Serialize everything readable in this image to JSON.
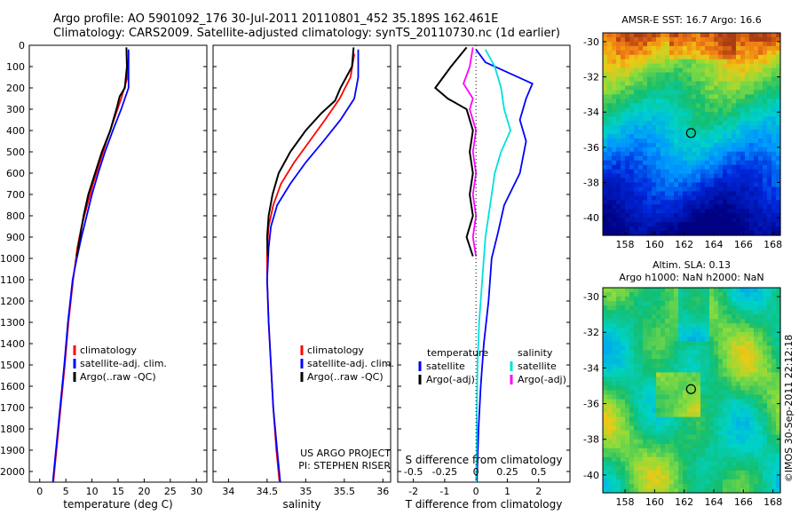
{
  "header": {
    "line1": "Argo profile: AO 5901092_176 30-Jul-2011 20110801_452 35.189S 162.461E",
    "line2": "Climatology: CARS2009. Satellite-adjusted climatology: synTS_20110730.nc (1d earlier)"
  },
  "depth_ticks": [
    "0",
    "100",
    "200",
    "300",
    "400",
    "500",
    "600",
    "700",
    "800",
    "900",
    "1000",
    "1100",
    "1200",
    "1300",
    "1400",
    "1500",
    "1600",
    "1700",
    "1800",
    "1900",
    "2000"
  ],
  "chart_data": [
    {
      "type": "line",
      "xlabel": "temperature (deg C)",
      "ylabel": "",
      "xlim": [
        -2,
        32
      ],
      "ylim": [
        2050,
        0
      ],
      "x_ticks": [
        "0",
        "5",
        "10",
        "15",
        "20",
        "25",
        "30"
      ],
      "legend": [
        "climatology",
        "satellite-adj. clim.",
        "Argo(..raw -QC)"
      ],
      "series": [
        {
          "name": "climatology",
          "color": "#ff0000",
          "points": [
            [
              17,
              60
            ],
            [
              16.8,
              150
            ],
            [
              15.6,
              250
            ],
            [
              14.2,
              350
            ],
            [
              12.8,
              450
            ],
            [
              11.5,
              550
            ],
            [
              10.2,
              650
            ],
            [
              9.1,
              750
            ],
            [
              8,
              850
            ],
            [
              7.2,
              950
            ],
            [
              6.4,
              1100
            ],
            [
              5.5,
              1300
            ],
            [
              4.8,
              1500
            ],
            [
              4,
              1700
            ],
            [
              3.2,
              1900
            ],
            [
              2.6,
              2050
            ]
          ]
        },
        {
          "name": "satellite-adj. clim.",
          "color": "#0000ff",
          "points": [
            [
              17,
              20
            ],
            [
              17,
              200
            ],
            [
              15.6,
              300
            ],
            [
              14,
              400
            ],
            [
              12.5,
              500
            ],
            [
              11.2,
              600
            ],
            [
              10,
              700
            ],
            [
              9,
              800
            ],
            [
              8,
              900
            ],
            [
              7.1,
              1000
            ],
            [
              6.3,
              1100
            ],
            [
              5.4,
              1300
            ],
            [
              4.7,
              1500
            ],
            [
              3.9,
              1700
            ],
            [
              3.1,
              1900
            ],
            [
              2.5,
              2050
            ]
          ]
        },
        {
          "name": "Argo(..raw -QC)",
          "color": "#000000",
          "points": [
            [
              16.6,
              10
            ],
            [
              16.7,
              100
            ],
            [
              16.3,
              200
            ],
            [
              15.3,
              240
            ],
            [
              14.8,
              290
            ],
            [
              13.5,
              400
            ],
            [
              11.9,
              500
            ],
            [
              10.6,
              600
            ],
            [
              9.3,
              700
            ],
            [
              8.4,
              800
            ],
            [
              7.7,
              900
            ],
            [
              7.1,
              990
            ]
          ]
        }
      ],
      "annotations": []
    },
    {
      "type": "line",
      "xlabel": "salinity",
      "ylabel": "",
      "xlim": [
        33.8,
        36.1
      ],
      "ylim": [
        2050,
        0
      ],
      "x_ticks": [
        "34",
        "34.5",
        "35",
        "35.5",
        "36"
      ],
      "legend": [
        "climatology",
        "satellite-adj. clim.",
        "Argo(..raw -QC)"
      ],
      "series": [
        {
          "name": "climatology",
          "color": "#ff0000",
          "points": [
            [
              35.63,
              40
            ],
            [
              35.58,
              150
            ],
            [
              35.44,
              250
            ],
            [
              35.25,
              350
            ],
            [
              35.05,
              450
            ],
            [
              34.85,
              550
            ],
            [
              34.68,
              650
            ],
            [
              34.58,
              750
            ],
            [
              34.52,
              850
            ],
            [
              34.5,
              950
            ],
            [
              34.5,
              1100
            ],
            [
              34.52,
              1300
            ],
            [
              34.55,
              1500
            ],
            [
              34.58,
              1700
            ],
            [
              34.62,
              1900
            ],
            [
              34.66,
              2050
            ]
          ]
        },
        {
          "name": "satellite-adj. clim.",
          "color": "#0000ff",
          "points": [
            [
              35.68,
              20
            ],
            [
              35.68,
              150
            ],
            [
              35.63,
              250
            ],
            [
              35.45,
              350
            ],
            [
              35.23,
              450
            ],
            [
              35.0,
              550
            ],
            [
              34.8,
              650
            ],
            [
              34.63,
              750
            ],
            [
              34.55,
              850
            ],
            [
              34.52,
              950
            ],
            [
              34.5,
              1100
            ],
            [
              34.52,
              1300
            ],
            [
              34.55,
              1500
            ],
            [
              34.58,
              1700
            ],
            [
              34.63,
              1900
            ],
            [
              34.67,
              2050
            ]
          ]
        },
        {
          "name": "Argo(..raw -QC)",
          "color": "#000000",
          "points": [
            [
              35.62,
              10
            ],
            [
              35.6,
              100
            ],
            [
              35.45,
              200
            ],
            [
              35.38,
              260
            ],
            [
              35.2,
              320
            ],
            [
              35.0,
              400
            ],
            [
              34.8,
              500
            ],
            [
              34.65,
              600
            ],
            [
              34.57,
              700
            ],
            [
              34.52,
              800
            ],
            [
              34.5,
              900
            ],
            [
              34.51,
              990
            ]
          ]
        }
      ],
      "annotations": [
        "US ARGO PROJECT",
        "PI: STEPHEN RISER"
      ]
    },
    {
      "type": "line",
      "xlabel": "T difference from climatology",
      "xlabel_top": "S difference from climatology",
      "ylabel": "",
      "xlim": [
        -2.5,
        3
      ],
      "ylim": [
        2050,
        0
      ],
      "x_ticks": [
        "-2",
        "-1",
        "0",
        "1",
        "2"
      ],
      "x_ticks_top": [
        "-0.5",
        "-0.25",
        "0",
        "0.25",
        "0.5"
      ],
      "legend_temperature": {
        "heading": "temperature",
        "items": [
          "satellite",
          "Argo(-adj)"
        ]
      },
      "legend_salinity": {
        "heading": "salinity",
        "items": [
          "satellite",
          "Argo(-adj)"
        ]
      },
      "series": [
        {
          "name": "satellite",
          "color": "#0000ff",
          "points": [
            [
              0,
              20
            ],
            [
              0.3,
              80
            ],
            [
              1.8,
              180
            ],
            [
              1.6,
              250
            ],
            [
              1.4,
              350
            ],
            [
              1.6,
              450
            ],
            [
              1.4,
              600
            ],
            [
              0.9,
              750
            ],
            [
              0.7,
              880
            ],
            [
              0.5,
              1000
            ],
            [
              0.4,
              1200
            ],
            [
              0.25,
              1400
            ],
            [
              0.15,
              1600
            ],
            [
              0.08,
              1800
            ],
            [
              0.03,
              2050
            ]
          ]
        },
        {
          "name": "Argo(-adj)",
          "color": "#000000",
          "points": [
            [
              -0.3,
              10
            ],
            [
              -0.8,
              100
            ],
            [
              -1.3,
              200
            ],
            [
              -0.9,
              250
            ],
            [
              -0.3,
              300
            ],
            [
              -0.1,
              400
            ],
            [
              -0.2,
              500
            ],
            [
              -0.1,
              600
            ],
            [
              -0.2,
              700
            ],
            [
              -0.1,
              800
            ],
            [
              -0.3,
              900
            ],
            [
              -0.1,
              990
            ]
          ]
        },
        {
          "name": "satellite",
          "color": "#00e0e0",
          "points": [
            [
              0.3,
              20
            ],
            [
              0.6,
              100
            ],
            [
              0.8,
              200
            ],
            [
              0.9,
              300
            ],
            [
              1.1,
              400
            ],
            [
              0.8,
              500
            ],
            [
              0.6,
              600
            ],
            [
              0.45,
              750
            ],
            [
              0.3,
              900
            ],
            [
              0.2,
              1100
            ],
            [
              0.1,
              1300
            ],
            [
              0.05,
              1500
            ],
            [
              0.03,
              1700
            ],
            [
              0.02,
              1900
            ],
            [
              0,
              2050
            ]
          ]
        },
        {
          "name": "Argo(-adj)",
          "color": "#ff00ff",
          "points": [
            [
              -0.1,
              10
            ],
            [
              -0.2,
              100
            ],
            [
              -0.4,
              180
            ],
            [
              -0.1,
              250
            ],
            [
              -0.2,
              300
            ],
            [
              0,
              400
            ],
            [
              -0.1,
              500
            ],
            [
              0,
              600
            ],
            [
              -0.1,
              700
            ],
            [
              0,
              800
            ],
            [
              -0.1,
              900
            ],
            [
              0,
              990
            ]
          ]
        }
      ],
      "annotations": []
    },
    {
      "type": "heatmap",
      "title": "AMSR-E SST: 16.7 Argo: 16.6",
      "xlim": [
        156.5,
        168.5
      ],
      "ylim": [
        -41,
        -29.5
      ],
      "x_ticks": [
        "158",
        "160",
        "162",
        "164",
        "166",
        "168"
      ],
      "y_ticks": [
        "-30",
        "-32",
        "-34",
        "-36",
        "-38",
        "-40"
      ],
      "marker": {
        "lon": 162.461,
        "lat": -35.189
      }
    },
    {
      "type": "heatmap",
      "title": "Altim. SLA: 0.13",
      "subtitle": "Argo h1000: NaN h2000: NaN",
      "xlim": [
        156.5,
        168.5
      ],
      "ylim": [
        -41,
        -29.5
      ],
      "x_ticks": [
        "158",
        "160",
        "162",
        "164",
        "166",
        "168"
      ],
      "y_ticks": [
        "-30",
        "-32",
        "-34",
        "-36",
        "-38",
        "-40"
      ],
      "marker": {
        "lon": 162.461,
        "lat": -35.189
      }
    }
  ],
  "footer": {
    "stamp": "©IMOS 30-Sep-2011 22:12:18"
  }
}
